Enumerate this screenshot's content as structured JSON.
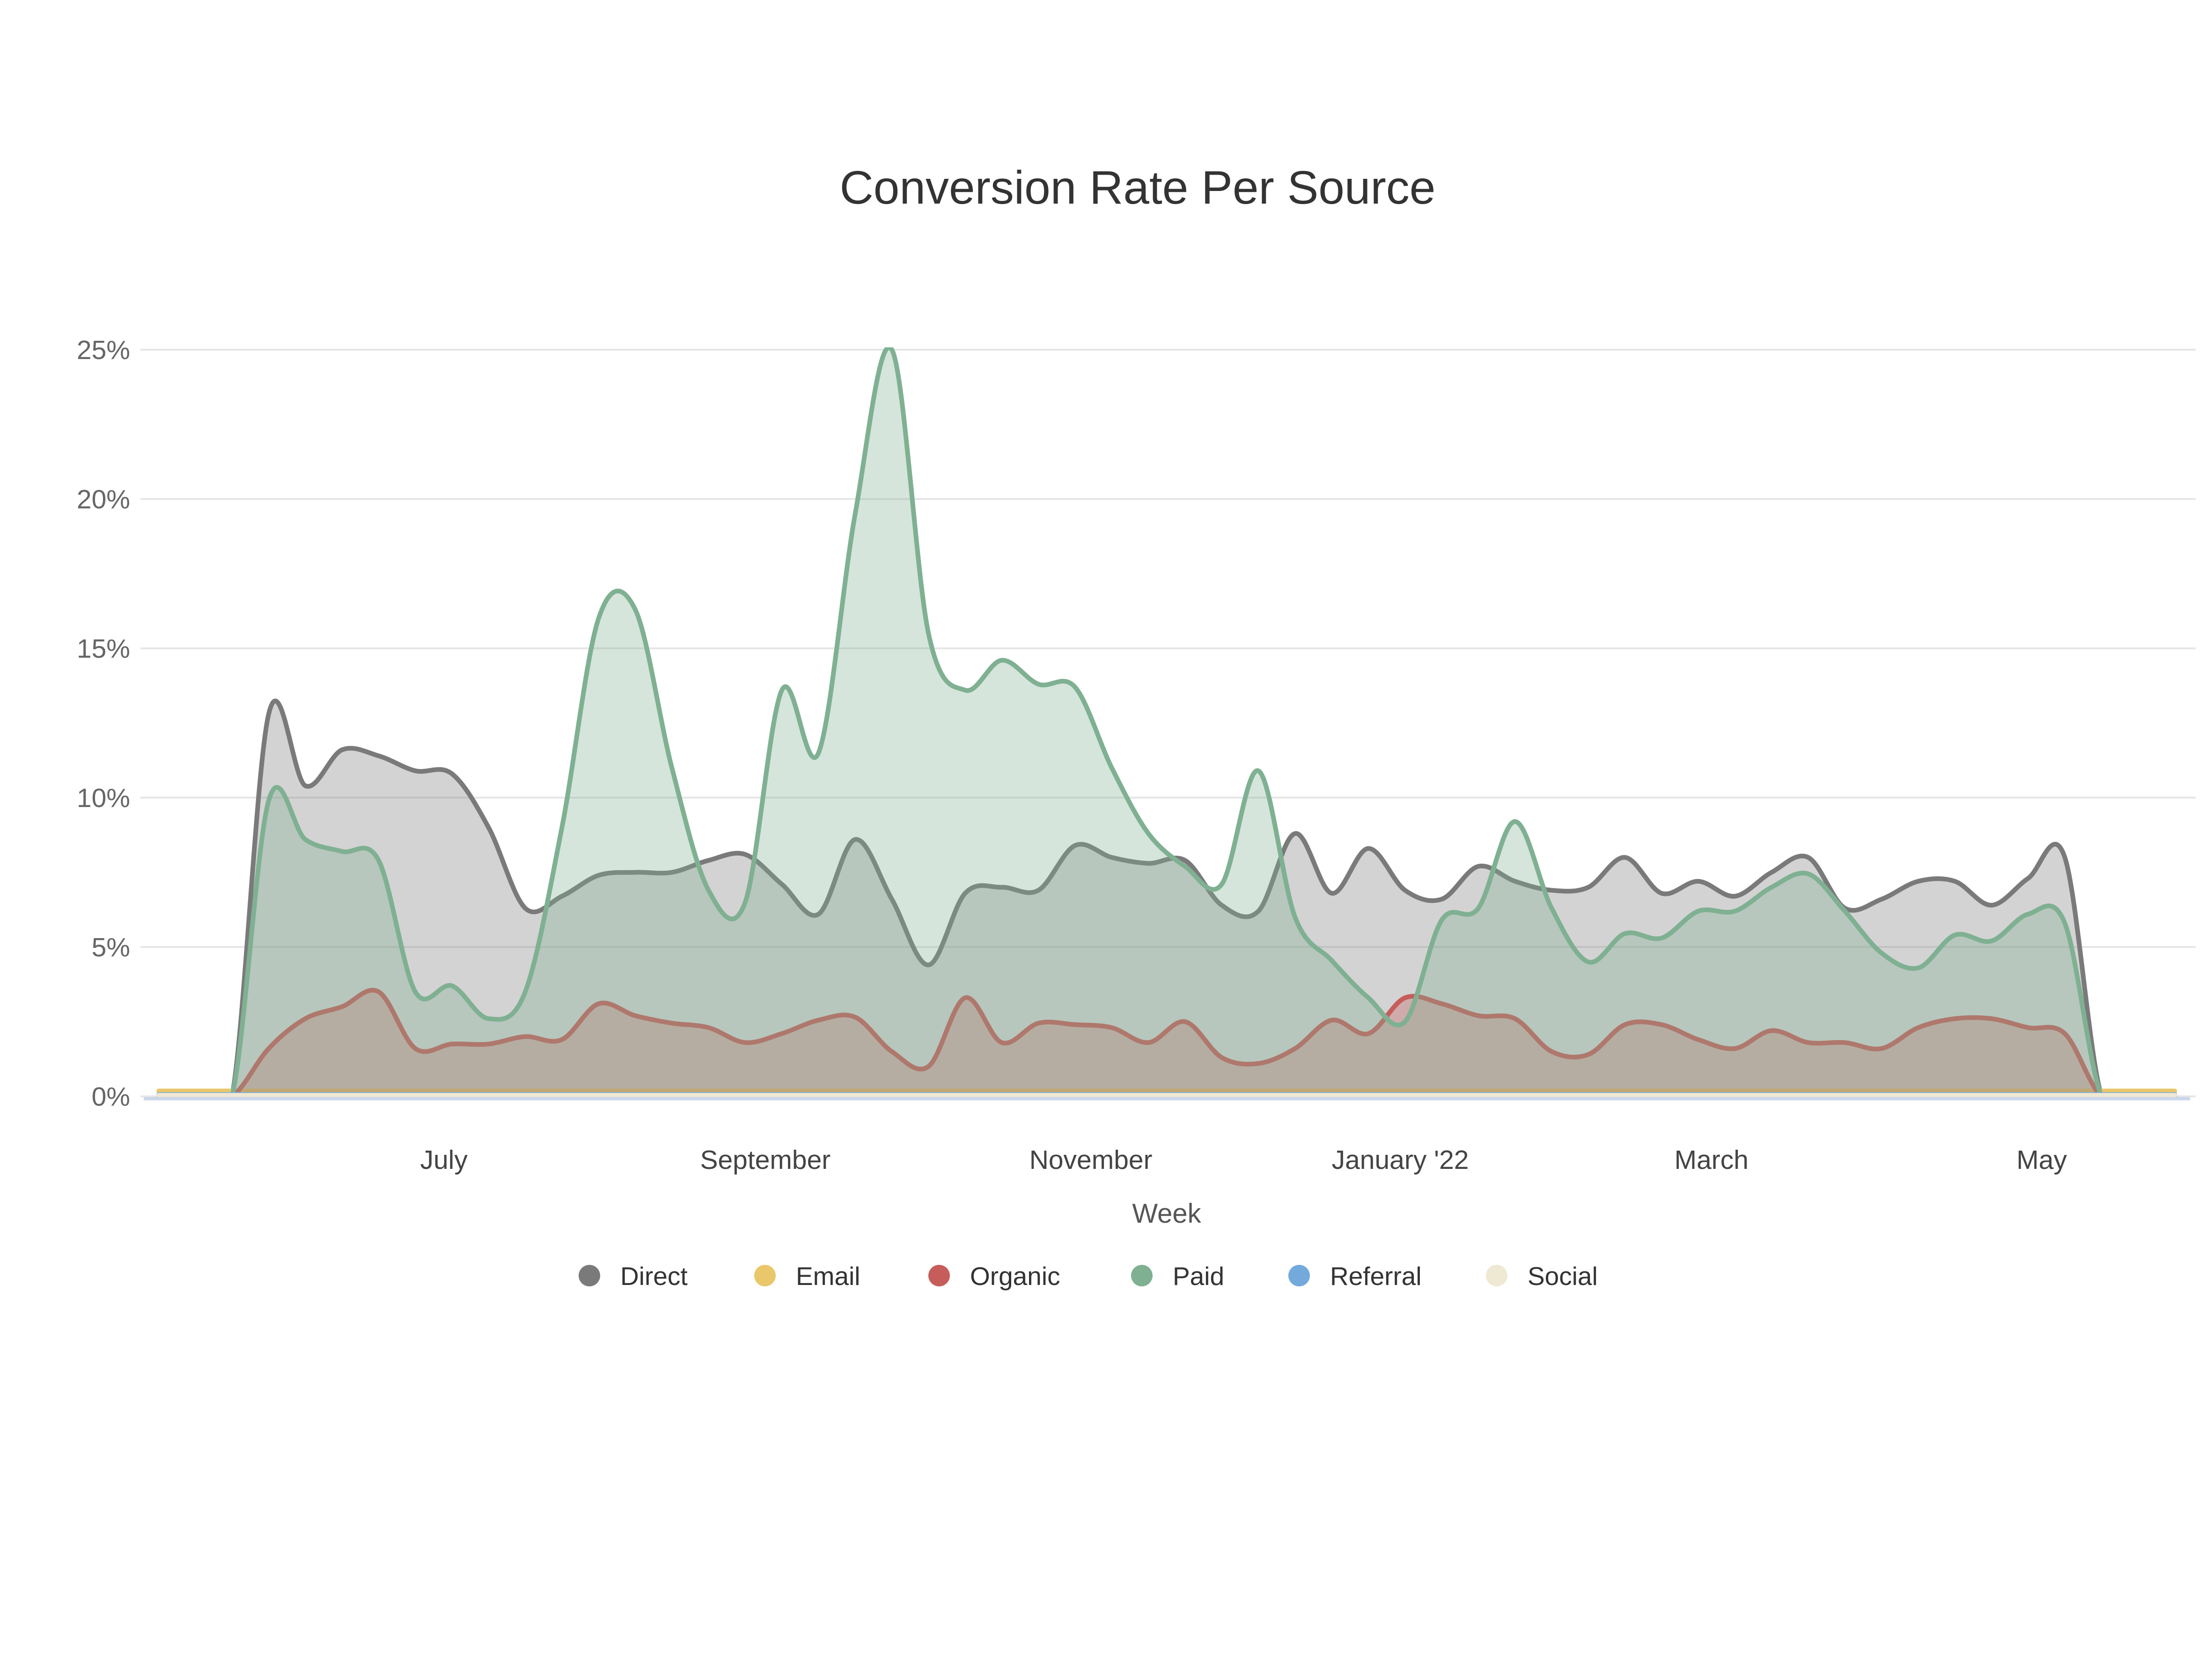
{
  "chart_data": {
    "type": "area",
    "title": "Conversion Rate Per Source",
    "xlabel": "Week",
    "ylabel": "",
    "ylim": [
      0,
      25
    ],
    "grid": true,
    "legend_position": "bottom",
    "yticks": [
      "0%",
      "5%",
      "10%",
      "15%",
      "20%",
      "25%"
    ],
    "xticks": [
      {
        "label": "July",
        "week": 7.78
      },
      {
        "label": "September",
        "week": 16.55
      },
      {
        "label": "November",
        "week": 25.43
      },
      {
        "label": "January '22",
        "week": 33.87
      },
      {
        "label": "March",
        "week": 42.36
      },
      {
        "label": "May",
        "week": 51.37
      }
    ],
    "x_unit": "weekly points, ~May 2021 through May 2022",
    "series": [
      {
        "name": "Direct",
        "color": "#7a7a7a",
        "values": [
          0,
          0,
          0,
          12.8,
          10.4,
          11.6,
          11.4,
          10.9,
          10.8,
          9.0,
          6.3,
          6.7,
          7.4,
          7.5,
          7.5,
          7.9,
          8.1,
          7.1,
          6.1,
          8.6,
          6.6,
          4.4,
          6.8,
          7.0,
          6.9,
          8.4,
          8.0,
          7.8,
          7.9,
          6.4,
          6.2,
          8.8,
          6.8,
          8.3,
          6.9,
          6.6,
          7.7,
          7.2,
          6.9,
          7.0,
          8.0,
          6.8,
          7.2,
          6.7,
          7.5,
          8.0,
          6.3,
          6.6,
          7.2,
          7.2,
          6.4,
          7.3,
          8.0,
          0,
          0,
          0
        ]
      },
      {
        "name": "Email",
        "color": "#e9c76a",
        "values": [
          0.18,
          0.18,
          0.18,
          0.18,
          0.18,
          0.18,
          0.18,
          0.18,
          0.18,
          0.18,
          0.18,
          0.18,
          0.18,
          0.18,
          0.18,
          0.18,
          0.18,
          0.18,
          0.18,
          0.18,
          0.18,
          0.18,
          0.18,
          0.18,
          0.18,
          0.18,
          0.18,
          0.18,
          0.18,
          0.18,
          0.18,
          0.18,
          0.18,
          0.18,
          0.18,
          0.18,
          0.18,
          0.18,
          0.18,
          0.18,
          0.18,
          0.18,
          0.18,
          0.18,
          0.18,
          0.18,
          0.18,
          0.18,
          0.18,
          0.18,
          0.18,
          0.18,
          0.18,
          0.18,
          0.18,
          0.18
        ]
      },
      {
        "name": "Organic",
        "color": "#c75d5b",
        "values": [
          0,
          0,
          0,
          1.6,
          2.6,
          3.0,
          3.5,
          1.6,
          1.75,
          1.75,
          2.0,
          1.9,
          3.1,
          2.7,
          2.45,
          2.3,
          1.8,
          2.1,
          2.55,
          2.65,
          1.5,
          1.0,
          3.3,
          1.8,
          2.45,
          2.4,
          2.3,
          1.8,
          2.5,
          1.3,
          1.1,
          1.6,
          2.55,
          2.1,
          3.3,
          3.1,
          2.7,
          2.6,
          1.5,
          1.4,
          2.4,
          2.4,
          1.9,
          1.6,
          2.2,
          1.8,
          1.8,
          1.6,
          2.3,
          2.6,
          2.6,
          2.3,
          2.1,
          0,
          0,
          0
        ]
      },
      {
        "name": "Paid",
        "color": "#7fb092",
        "values": [
          0,
          0,
          0,
          9.9,
          8.6,
          8.2,
          7.9,
          3.5,
          3.7,
          2.6,
          3.5,
          9.0,
          16.0,
          16.3,
          11.0,
          6.9,
          6.5,
          13.6,
          11.5,
          19.5,
          25.0,
          15.5,
          13.6,
          14.6,
          13.8,
          13.7,
          11.0,
          8.8,
          7.7,
          7.1,
          10.9,
          6.0,
          4.55,
          3.3,
          2.5,
          5.9,
          6.3,
          9.2,
          6.3,
          4.5,
          5.45,
          5.3,
          6.2,
          6.2,
          7.0,
          7.45,
          6.2,
          4.8,
          4.3,
          5.4,
          5.2,
          6.1,
          5.8,
          0,
          0,
          0
        ]
      },
      {
        "name": "Referral",
        "color": "#74a9dc",
        "values": [
          0.06,
          0.06,
          0.06,
          0.06,
          0.06,
          0.06,
          0.06,
          0.06,
          0.06,
          0.06,
          0.06,
          0.06,
          0.06,
          0.06,
          0.06,
          0.06,
          0.06,
          0.06,
          0.06,
          0.06,
          0.06,
          0.06,
          0.06,
          0.06,
          0.06,
          0.06,
          0.06,
          0.06,
          0.06,
          0.06,
          0.06,
          0.06,
          0.06,
          0.06,
          0.06,
          0.06,
          0.06,
          0.06,
          0.06,
          0.06,
          0.06,
          0.06,
          0.06,
          0.06,
          0.06,
          0.06,
          0.06,
          0.06,
          0.06,
          0.06,
          0.06,
          0.06,
          0.06,
          0.06,
          0.06,
          0.06
        ]
      },
      {
        "name": "Social",
        "color": "#efe8d2",
        "values": [
          0.035,
          0.035,
          0.035,
          0.035,
          0.035,
          0.035,
          0.035,
          0.035,
          0.035,
          0.035,
          0.035,
          0.035,
          0.035,
          0.035,
          0.035,
          0.035,
          0.035,
          0.035,
          0.035,
          0.035,
          0.035,
          0.035,
          0.035,
          0.035,
          0.035,
          0.035,
          0.035,
          0.035,
          0.035,
          0.035,
          0.035,
          0.035,
          0.035,
          0.035,
          0.035,
          0.035,
          0.035,
          0.035,
          0.035,
          0.035,
          0.035,
          0.035,
          0.035,
          0.035,
          0.035,
          0.035,
          0.035,
          0.035,
          0.035,
          0.035,
          0.035,
          0.035,
          0.035,
          0.035,
          0.035,
          0.035
        ]
      }
    ],
    "legend": [
      "Direct",
      "Email",
      "Organic",
      "Paid",
      "Referral",
      "Social"
    ]
  },
  "colors": {
    "background": "#ffffff",
    "title": "#333333",
    "grid": "#e6e6e6",
    "axis_line": "#ccd6ea",
    "ytick_text": "#666666",
    "xtick_text": "#444444",
    "axis_title_text": "#555555",
    "legend_text": "#333333"
  }
}
